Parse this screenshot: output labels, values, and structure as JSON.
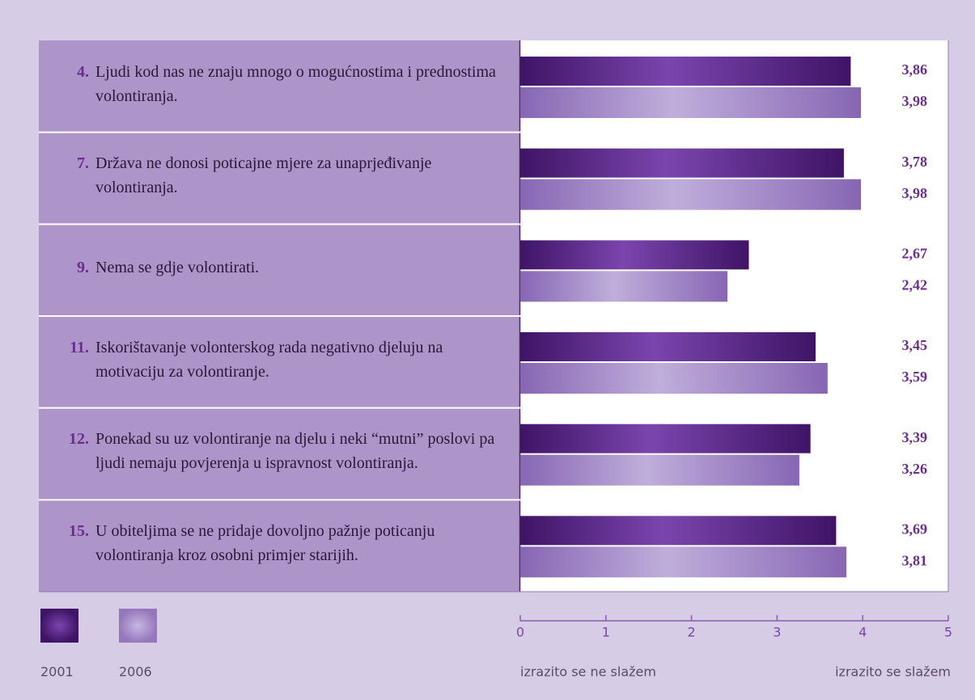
{
  "chart_data": {
    "type": "bar",
    "orientation": "horizontal",
    "item_numbers": [
      "4.",
      "7.",
      "9.",
      "11.",
      "12.",
      "15."
    ],
    "categories": [
      "Ljudi kod nas ne znaju mnogo o mogućnostima i prednostima volontiranja.",
      "Država ne donosi poticajne mjere za unaprjeđivanje volontiranja.",
      "Nema se gdje volontirati.",
      "Iskorištavanje volonterskog rada negativno djeluju na motivaciju za volontiranje.",
      "Ponekad su uz volontiranje na djelu i neki “mutni” poslovi pa ljudi nemaju povjerenja u ispravnost volontiranja.",
      "U obiteljima se ne pridaje dovoljno pažnje poticanju volontiranja kroz osobni primjer starijih."
    ],
    "series": [
      {
        "name": "2001",
        "color": "#5a2588",
        "values": [
          3.86,
          3.78,
          2.67,
          3.45,
          3.39,
          3.69
        ],
        "value_labels": [
          "3,86",
          "3,78",
          "2,67",
          "3,45",
          "3,39",
          "3,69"
        ]
      },
      {
        "name": "2006",
        "color": "#9677bd",
        "values": [
          3.98,
          3.98,
          2.42,
          3.59,
          3.26,
          3.81
        ],
        "value_labels": [
          "3,98",
          "3,98",
          "2,42",
          "3,59",
          "3,26",
          "3,81"
        ]
      }
    ],
    "xlim": [
      0,
      5
    ],
    "xticks": [
      0,
      1,
      2,
      3,
      4,
      5
    ],
    "x_label_left": "izrazito se ne slažem",
    "x_label_right": "izrazito se slažem"
  }
}
